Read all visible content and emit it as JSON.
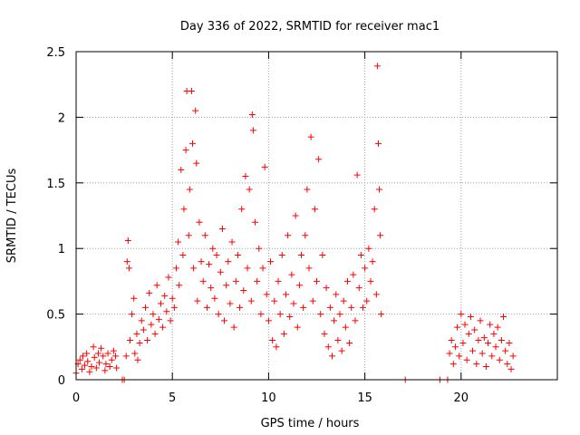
{
  "chart_data": {
    "type": "scatter",
    "title": "Day 336 of 2022, SRMTID for receiver mac1",
    "xlabel": "GPS time / hours",
    "ylabel": "SRMTID / TECUs",
    "xlim": [
      0,
      25
    ],
    "ylim": [
      0,
      2.5
    ],
    "xticks": [
      0,
      5,
      10,
      15,
      20
    ],
    "yticks": [
      0,
      0.5,
      1,
      1.5,
      2,
      2.5
    ],
    "xtick_labels": [
      "0",
      "5",
      "10",
      "15",
      "20"
    ],
    "ytick_labels": [
      "0",
      "0.5",
      "1",
      "1.5",
      "2",
      "2.5"
    ],
    "grid": true,
    "marker": "plus",
    "color": "#ff0000",
    "series": [
      {
        "name": "SRMTID",
        "points": [
          [
            0.0,
            0.05
          ],
          [
            0.1,
            0.12
          ],
          [
            0.2,
            0.15
          ],
          [
            0.3,
            0.08
          ],
          [
            0.35,
            0.18
          ],
          [
            0.45,
            0.11
          ],
          [
            0.55,
            0.2
          ],
          [
            0.6,
            0.14
          ],
          [
            0.7,
            0.06
          ],
          [
            0.8,
            0.1
          ],
          [
            0.9,
            0.25
          ],
          [
            0.95,
            0.17
          ],
          [
            1.05,
            0.09
          ],
          [
            1.15,
            0.2
          ],
          [
            1.2,
            0.13
          ],
          [
            1.3,
            0.24
          ],
          [
            1.4,
            0.18
          ],
          [
            1.5,
            0.07
          ],
          [
            1.55,
            0.12
          ],
          [
            1.65,
            0.2
          ],
          [
            1.75,
            0.1
          ],
          [
            1.85,
            0.15
          ],
          [
            1.95,
            0.22
          ],
          [
            2.05,
            0.18
          ],
          [
            2.1,
            0.09
          ],
          [
            2.4,
            0.0
          ],
          [
            2.5,
            0.0
          ],
          [
            2.6,
            0.18
          ],
          [
            2.65,
            0.9
          ],
          [
            2.7,
            1.06
          ],
          [
            2.75,
            0.85
          ],
          [
            2.8,
            0.3
          ],
          [
            2.9,
            0.5
          ],
          [
            3.0,
            0.62
          ],
          [
            3.05,
            0.2
          ],
          [
            3.15,
            0.35
          ],
          [
            3.2,
            0.15
          ],
          [
            3.3,
            0.28
          ],
          [
            3.4,
            0.45
          ],
          [
            3.5,
            0.38
          ],
          [
            3.6,
            0.55
          ],
          [
            3.7,
            0.3
          ],
          [
            3.8,
            0.66
          ],
          [
            3.9,
            0.42
          ],
          [
            4.0,
            0.5
          ],
          [
            4.1,
            0.35
          ],
          [
            4.2,
            0.72
          ],
          [
            4.3,
            0.46
          ],
          [
            4.4,
            0.58
          ],
          [
            4.5,
            0.4
          ],
          [
            4.6,
            0.64
          ],
          [
            4.7,
            0.52
          ],
          [
            4.8,
            0.78
          ],
          [
            4.9,
            0.45
          ],
          [
            5.0,
            0.62
          ],
          [
            5.1,
            0.55
          ],
          [
            5.2,
            0.85
          ],
          [
            5.3,
            1.05
          ],
          [
            5.35,
            0.72
          ],
          [
            5.45,
            1.6
          ],
          [
            5.55,
            0.95
          ],
          [
            5.6,
            1.3
          ],
          [
            5.7,
            1.75
          ],
          [
            5.75,
            2.2
          ],
          [
            5.85,
            1.1
          ],
          [
            5.9,
            1.45
          ],
          [
            6.0,
            2.2
          ],
          [
            6.05,
            1.8
          ],
          [
            6.1,
            0.85
          ],
          [
            6.2,
            2.05
          ],
          [
            6.25,
            1.65
          ],
          [
            6.3,
            0.6
          ],
          [
            6.4,
            1.2
          ],
          [
            6.5,
            0.9
          ],
          [
            6.6,
            0.75
          ],
          [
            6.7,
            1.1
          ],
          [
            6.8,
            0.55
          ],
          [
            6.9,
            0.88
          ],
          [
            7.0,
            0.7
          ],
          [
            7.1,
            1.0
          ],
          [
            7.2,
            0.62
          ],
          [
            7.3,
            0.95
          ],
          [
            7.4,
            0.5
          ],
          [
            7.5,
            0.82
          ],
          [
            7.6,
            1.15
          ],
          [
            7.7,
            0.45
          ],
          [
            7.8,
            0.72
          ],
          [
            7.9,
            0.9
          ],
          [
            8.0,
            0.58
          ],
          [
            8.1,
            1.05
          ],
          [
            8.2,
            0.4
          ],
          [
            8.3,
            0.75
          ],
          [
            8.4,
            0.95
          ],
          [
            8.5,
            0.55
          ],
          [
            8.6,
            1.3
          ],
          [
            8.7,
            0.68
          ],
          [
            8.8,
            1.55
          ],
          [
            8.9,
            0.85
          ],
          [
            9.0,
            1.45
          ],
          [
            9.1,
            0.6
          ],
          [
            9.15,
            2.02
          ],
          [
            9.2,
            1.9
          ],
          [
            9.3,
            1.2
          ],
          [
            9.4,
            0.75
          ],
          [
            9.5,
            1.0
          ],
          [
            9.6,
            0.5
          ],
          [
            9.7,
            0.85
          ],
          [
            9.8,
            1.62
          ],
          [
            9.9,
            0.65
          ],
          [
            10.0,
            0.45
          ],
          [
            10.1,
            0.9
          ],
          [
            10.2,
            0.3
          ],
          [
            10.3,
            0.6
          ],
          [
            10.4,
            0.25
          ],
          [
            10.5,
            0.75
          ],
          [
            10.6,
            0.5
          ],
          [
            10.7,
            0.95
          ],
          [
            10.8,
            0.35
          ],
          [
            10.9,
            0.65
          ],
          [
            11.0,
            1.1
          ],
          [
            11.1,
            0.48
          ],
          [
            11.2,
            0.8
          ],
          [
            11.3,
            0.58
          ],
          [
            11.4,
            1.25
          ],
          [
            11.5,
            0.4
          ],
          [
            11.6,
            0.72
          ],
          [
            11.7,
            0.95
          ],
          [
            11.8,
            0.55
          ],
          [
            11.9,
            1.1
          ],
          [
            12.0,
            1.45
          ],
          [
            12.1,
            0.85
          ],
          [
            12.2,
            1.85
          ],
          [
            12.3,
            0.6
          ],
          [
            12.4,
            1.3
          ],
          [
            12.5,
            0.75
          ],
          [
            12.6,
            1.68
          ],
          [
            12.7,
            0.5
          ],
          [
            12.8,
            0.95
          ],
          [
            12.9,
            0.35
          ],
          [
            13.0,
            0.7
          ],
          [
            13.1,
            0.25
          ],
          [
            13.2,
            0.55
          ],
          [
            13.3,
            0.18
          ],
          [
            13.4,
            0.45
          ],
          [
            13.5,
            0.65
          ],
          [
            13.6,
            0.3
          ],
          [
            13.7,
            0.5
          ],
          [
            13.8,
            0.22
          ],
          [
            13.9,
            0.6
          ],
          [
            14.0,
            0.4
          ],
          [
            14.1,
            0.75
          ],
          [
            14.2,
            0.28
          ],
          [
            14.3,
            0.55
          ],
          [
            14.4,
            0.8
          ],
          [
            14.5,
            0.45
          ],
          [
            14.6,
            1.56
          ],
          [
            14.7,
            0.7
          ],
          [
            14.8,
            0.95
          ],
          [
            14.9,
            0.55
          ],
          [
            15.0,
            0.85
          ],
          [
            15.1,
            0.6
          ],
          [
            15.2,
            1.0
          ],
          [
            15.3,
            0.75
          ],
          [
            15.4,
            0.9
          ],
          [
            15.5,
            1.3
          ],
          [
            15.6,
            0.65
          ],
          [
            15.65,
            2.39
          ],
          [
            15.7,
            1.8
          ],
          [
            15.75,
            1.45
          ],
          [
            15.8,
            1.1
          ],
          [
            15.85,
            0.5
          ],
          [
            17.1,
            0.0
          ],
          [
            18.9,
            0.0
          ],
          [
            19.3,
            0.0
          ],
          [
            19.4,
            0.2
          ],
          [
            19.5,
            0.3
          ],
          [
            19.6,
            0.12
          ],
          [
            19.7,
            0.25
          ],
          [
            19.8,
            0.4
          ],
          [
            19.9,
            0.18
          ],
          [
            20.0,
            0.5
          ],
          [
            20.1,
            0.28
          ],
          [
            20.2,
            0.42
          ],
          [
            20.3,
            0.15
          ],
          [
            20.4,
            0.35
          ],
          [
            20.5,
            0.48
          ],
          [
            20.6,
            0.22
          ],
          [
            20.7,
            0.38
          ],
          [
            20.8,
            0.12
          ],
          [
            20.9,
            0.3
          ],
          [
            21.0,
            0.45
          ],
          [
            21.1,
            0.2
          ],
          [
            21.2,
            0.32
          ],
          [
            21.3,
            0.1
          ],
          [
            21.4,
            0.28
          ],
          [
            21.5,
            0.42
          ],
          [
            21.6,
            0.18
          ],
          [
            21.7,
            0.35
          ],
          [
            21.8,
            0.25
          ],
          [
            21.9,
            0.4
          ],
          [
            22.0,
            0.15
          ],
          [
            22.1,
            0.3
          ],
          [
            22.2,
            0.48
          ],
          [
            22.3,
            0.22
          ],
          [
            22.4,
            0.12
          ],
          [
            22.5,
            0.28
          ],
          [
            22.6,
            0.08
          ],
          [
            22.7,
            0.18
          ]
        ]
      }
    ]
  }
}
